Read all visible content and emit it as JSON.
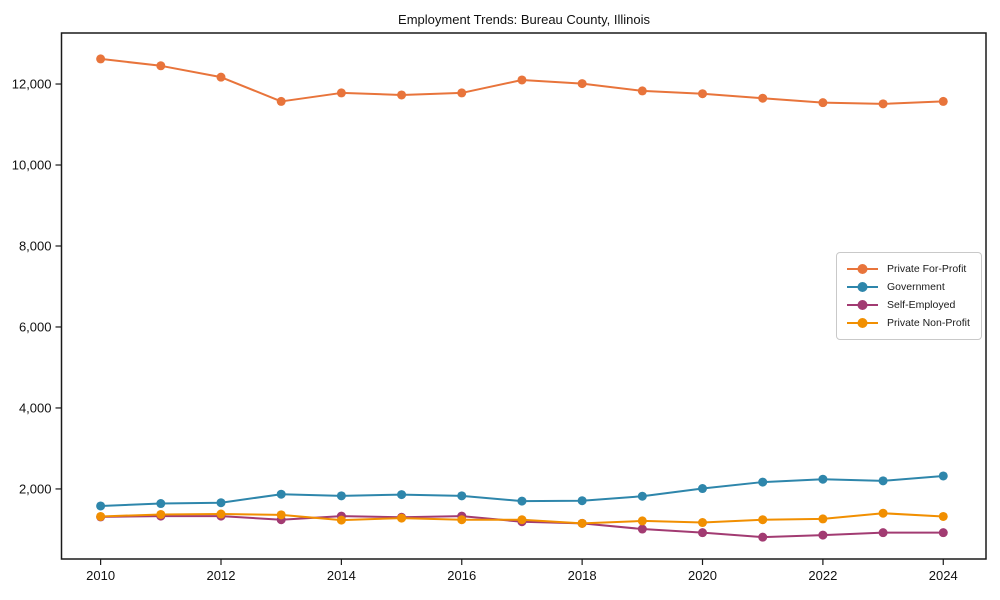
{
  "chart_data": {
    "type": "line",
    "title": "Employment Trends: Bureau County, Illinois",
    "xlabel": "",
    "ylabel": "",
    "x": [
      2010,
      2011,
      2012,
      2013,
      2014,
      2015,
      2016,
      2017,
      2018,
      2019,
      2020,
      2021,
      2022,
      2023,
      2024
    ],
    "series": [
      {
        "name": "Private For-Profit",
        "color": "#E8743B",
        "values": [
          12620,
          12450,
          12170,
          11570,
          11780,
          11730,
          11780,
          12100,
          12010,
          11830,
          11760,
          11650,
          11540,
          11510,
          11570
        ]
      },
      {
        "name": "Government",
        "color": "#2E86AB",
        "values": [
          1580,
          1640,
          1660,
          1870,
          1830,
          1860,
          1830,
          1700,
          1710,
          1820,
          2010,
          2170,
          2240,
          2200,
          2320
        ]
      },
      {
        "name": "Self-Employed",
        "color": "#A23B72",
        "values": [
          1310,
          1330,
          1330,
          1240,
          1330,
          1300,
          1330,
          1190,
          1150,
          1010,
          920,
          810,
          860,
          920,
          920
        ]
      },
      {
        "name": "Private Non-Profit",
        "color": "#F18F01",
        "values": [
          1320,
          1370,
          1380,
          1360,
          1230,
          1280,
          1240,
          1240,
          1150,
          1210,
          1170,
          1240,
          1260,
          1400,
          1320
        ]
      }
    ],
    "xlim": [
      2009.35,
      2024.71
    ],
    "ylim": [
      270,
      13260
    ],
    "xticks": {
      "values": [
        2010,
        2012,
        2014,
        2016,
        2018,
        2020,
        2022,
        2024
      ],
      "labels": [
        "2010",
        "2012",
        "2014",
        "2016",
        "2018",
        "2020",
        "2022",
        "2024"
      ]
    },
    "yticks": {
      "values": [
        2000,
        4000,
        6000,
        8000,
        10000,
        12000
      ],
      "labels": [
        "2,000",
        "4,000",
        "6,000",
        "8,000",
        "10,000",
        "12,000"
      ]
    },
    "legend": {
      "position": "center-right"
    },
    "grid": false,
    "frame": true,
    "background": "#FFFFFF",
    "axis_color": "#1A1A1A"
  }
}
